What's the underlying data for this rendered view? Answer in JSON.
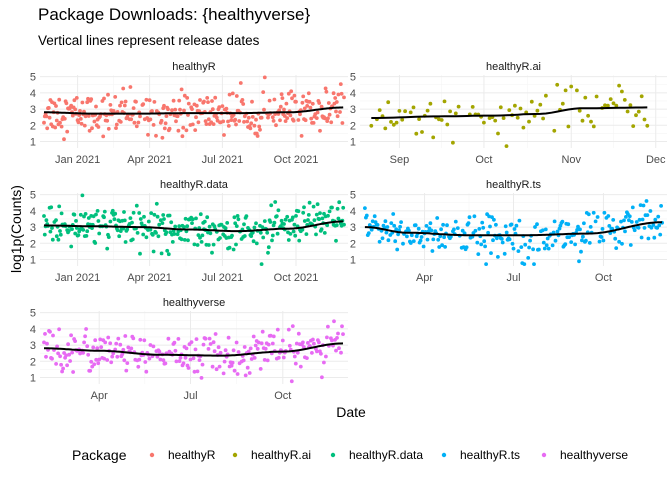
{
  "title": "Package Downloads: {healthyverse}",
  "subtitle": "Vertical lines represent release dates",
  "xlabel": "Date",
  "ylabel": "log1p(Counts)",
  "legend": {
    "title": "Package",
    "position": "bottom"
  },
  "colors": {
    "healthyR": "#F8766D",
    "healthyR.ai": "#A3A500",
    "healthyR.data": "#00BF7D",
    "healthyR.ts": "#00B0F6",
    "healthyverse": "#E76BF3",
    "smooth": "#000000",
    "grid_major": "#ebebeb",
    "grid_minor": "#f5f5f5"
  },
  "chart_data": {
    "type": "scatter",
    "overlay": "smoothed trend line (black)",
    "facets": [
      {
        "name": "healthyR",
        "xlim": [
          "2020-11-15",
          "2021-12-05"
        ],
        "ylim": [
          0.6,
          5.1
        ],
        "yticks": [
          1,
          2,
          3,
          4,
          5
        ],
        "xticks": [
          {
            "date": "2021-01-01",
            "label": "Jan 2021"
          },
          {
            "date": "2021-04-01",
            "label": "Apr 2021"
          },
          {
            "date": "2021-07-01",
            "label": "Jul 2021"
          },
          {
            "date": "2021-10-01",
            "label": "Oct 2021"
          }
        ],
        "smooth": [
          {
            "date": "2020-11-20",
            "y": 2.8
          },
          {
            "date": "2021-01-20",
            "y": 2.72
          },
          {
            "date": "2021-03-20",
            "y": 2.72
          },
          {
            "date": "2021-05-20",
            "y": 2.75
          },
          {
            "date": "2021-07-20",
            "y": 2.75
          },
          {
            "date": "2021-09-20",
            "y": 2.8
          },
          {
            "date": "2021-11-30",
            "y": 3.1
          }
        ]
      },
      {
        "name": "healthyR.ai",
        "xlim": [
          "2021-08-18",
          "2021-12-05"
        ],
        "ylim": [
          0.6,
          5.1
        ],
        "yticks": [
          1,
          2,
          3,
          4,
          5
        ],
        "xticks": [
          {
            "date": "2021-09-01",
            "label": "Sep"
          },
          {
            "date": "2021-10-01",
            "label": "Oct"
          },
          {
            "date": "2021-11-01",
            "label": "Nov"
          },
          {
            "date": "2021-12-01",
            "label": "Dec"
          }
        ],
        "smooth": [
          {
            "date": "2021-08-22",
            "y": 2.45
          },
          {
            "date": "2021-09-15",
            "y": 2.55
          },
          {
            "date": "2021-10-05",
            "y": 2.6
          },
          {
            "date": "2021-10-20",
            "y": 2.7
          },
          {
            "date": "2021-11-05",
            "y": 3.05
          },
          {
            "date": "2021-11-28",
            "y": 3.1
          }
        ]
      },
      {
        "name": "healthyR.data",
        "xlim": [
          "2020-11-15",
          "2021-12-05"
        ],
        "ylim": [
          0.6,
          5.1
        ],
        "yticks": [
          1,
          2,
          3,
          4,
          5
        ],
        "xticks": [
          {
            "date": "2021-01-01",
            "label": "Jan 2021"
          },
          {
            "date": "2021-04-01",
            "label": "Apr 2021"
          },
          {
            "date": "2021-07-01",
            "label": "Jul 2021"
          },
          {
            "date": "2021-10-01",
            "label": "Oct 2021"
          }
        ],
        "smooth": [
          {
            "date": "2020-11-20",
            "y": 3.1
          },
          {
            "date": "2021-01-20",
            "y": 3.05
          },
          {
            "date": "2021-03-20",
            "y": 3.0
          },
          {
            "date": "2021-05-20",
            "y": 2.85
          },
          {
            "date": "2021-07-20",
            "y": 2.75
          },
          {
            "date": "2021-09-20",
            "y": 2.9
          },
          {
            "date": "2021-11-30",
            "y": 3.35
          }
        ]
      },
      {
        "name": "healthyR.ts",
        "xlim": [
          "2021-01-25",
          "2021-12-05"
        ],
        "ylim": [
          0.6,
          5.1
        ],
        "yticks": [
          1,
          2,
          3,
          4,
          5
        ],
        "xticks": [
          {
            "date": "2021-04-01",
            "label": "Apr"
          },
          {
            "date": "2021-07-01",
            "label": "Jul"
          },
          {
            "date": "2021-10-01",
            "label": "Oct"
          }
        ],
        "smooth": [
          {
            "date": "2021-01-30",
            "y": 3.0
          },
          {
            "date": "2021-03-15",
            "y": 2.65
          },
          {
            "date": "2021-05-15",
            "y": 2.5
          },
          {
            "date": "2021-07-15",
            "y": 2.5
          },
          {
            "date": "2021-09-15",
            "y": 2.6
          },
          {
            "date": "2021-11-30",
            "y": 3.3
          }
        ]
      },
      {
        "name": "healthyverse",
        "xlim": [
          "2021-02-01",
          "2021-12-05"
        ],
        "ylim": [
          0.6,
          5.1
        ],
        "yticks": [
          1,
          2,
          3,
          4,
          5
        ],
        "xticks": [
          {
            "date": "2021-04-01",
            "label": "Apr"
          },
          {
            "date": "2021-07-01",
            "label": "Jul"
          },
          {
            "date": "2021-10-01",
            "label": "Oct"
          }
        ],
        "smooth": [
          {
            "date": "2021-02-05",
            "y": 2.8
          },
          {
            "date": "2021-04-01",
            "y": 2.65
          },
          {
            "date": "2021-06-01",
            "y": 2.4
          },
          {
            "date": "2021-08-01",
            "y": 2.35
          },
          {
            "date": "2021-10-01",
            "y": 2.6
          },
          {
            "date": "2021-11-30",
            "y": 3.1
          }
        ]
      }
    ]
  }
}
